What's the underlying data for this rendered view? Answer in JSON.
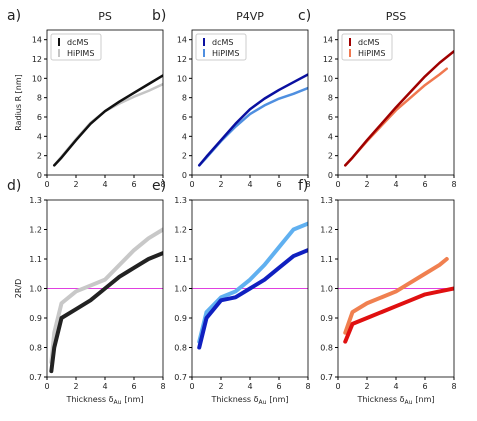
{
  "chart_data": [
    {
      "type": "line",
      "panel_label": "a)",
      "title": "PS",
      "ylabel": "Radius R [nm]",
      "xlim": [
        0,
        8
      ],
      "ylim": [
        0,
        15
      ],
      "xticks": [
        0,
        2,
        4,
        6,
        8
      ],
      "yticks": [
        0,
        2,
        4,
        6,
        8,
        10,
        12,
        14
      ],
      "legend": "upper left",
      "series": [
        {
          "name": "dcMS",
          "color": "#111111",
          "x": [
            0.5,
            1,
            2,
            3,
            4,
            5,
            6,
            7,
            8
          ],
          "values": [
            1.0,
            1.8,
            3.6,
            5.3,
            6.6,
            7.6,
            8.5,
            9.4,
            10.3
          ]
        },
        {
          "name": "HiPIMS",
          "color": "#c4c4c4",
          "x": [
            0.5,
            1,
            2,
            3,
            4,
            5,
            6,
            7,
            8
          ],
          "values": [
            1.0,
            1.9,
            3.7,
            5.4,
            6.6,
            7.4,
            8.1,
            8.7,
            9.4
          ]
        }
      ]
    },
    {
      "type": "line",
      "panel_label": "b)",
      "title": "P4VP",
      "xlim": [
        0,
        8
      ],
      "ylim": [
        0,
        15
      ],
      "xticks": [
        0,
        2,
        4,
        6,
        8
      ],
      "yticks": [
        0,
        2,
        4,
        6,
        8,
        10,
        12,
        14
      ],
      "legend": "upper left",
      "series": [
        {
          "name": "dcMS",
          "color": "#0a10a0",
          "x": [
            0.5,
            1,
            2,
            3,
            4,
            5,
            6,
            7,
            8
          ],
          "values": [
            1.0,
            1.9,
            3.6,
            5.3,
            6.8,
            7.9,
            8.8,
            9.6,
            10.4
          ]
        },
        {
          "name": "HiPIMS",
          "color": "#4f8fe0",
          "x": [
            0.5,
            1,
            2,
            3,
            4,
            5,
            6,
            7,
            8
          ],
          "values": [
            1.0,
            1.8,
            3.5,
            5.0,
            6.3,
            7.2,
            7.9,
            8.4,
            9.0
          ]
        }
      ]
    },
    {
      "type": "line",
      "panel_label": "c)",
      "title": "PSS",
      "xlim": [
        0,
        8
      ],
      "ylim": [
        0,
        15
      ],
      "xticks": [
        0,
        2,
        4,
        6,
        8
      ],
      "yticks": [
        0,
        2,
        4,
        6,
        8,
        10,
        12,
        14
      ],
      "legend": "upper left",
      "series": [
        {
          "name": "dcMS",
          "color": "#a00000",
          "x": [
            0.5,
            1,
            2,
            3,
            4,
            5,
            6,
            7,
            8
          ],
          "values": [
            1.0,
            1.8,
            3.6,
            5.3,
            7.0,
            8.6,
            10.2,
            11.6,
            12.8
          ]
        },
        {
          "name": "HiPIMS",
          "color": "#f07850",
          "x": [
            0.5,
            1,
            2,
            3,
            4,
            5,
            6,
            7,
            7.5
          ],
          "values": [
            1.0,
            1.8,
            3.5,
            5.1,
            6.7,
            8.0,
            9.3,
            10.4,
            11.0
          ]
        }
      ]
    },
    {
      "type": "line",
      "panel_label": "d)",
      "ylabel": "2R/D",
      "xlabel": [
        "Thickness δ",
        "Au",
        "[nm]"
      ],
      "xlim": [
        0,
        8
      ],
      "ylim": [
        0.7,
        1.3
      ],
      "xticks": [
        0,
        2,
        4,
        6,
        8
      ],
      "yticks": [
        0.7,
        0.8,
        0.9,
        {
          "value": 1,
          "label": "1.0"
        },
        1.1,
        1.2,
        1.3
      ],
      "hline": 1,
      "hline_color": "#e040e0",
      "series": [
        {
          "name": "dcMS",
          "color": "#222222",
          "x": [
            0.3,
            0.5,
            1,
            2,
            3,
            4,
            5,
            6,
            7,
            8
          ],
          "values": [
            0.72,
            0.8,
            0.9,
            0.93,
            0.96,
            1.0,
            1.04,
            1.07,
            1.1,
            1.12
          ]
        },
        {
          "name": "HiPIMS",
          "color": "#c8c8c8",
          "x": [
            0.3,
            0.5,
            1,
            2,
            3,
            4,
            5,
            6,
            7,
            8
          ],
          "values": [
            0.75,
            0.85,
            0.95,
            0.99,
            1.01,
            1.03,
            1.08,
            1.13,
            1.17,
            1.2
          ]
        }
      ]
    },
    {
      "type": "line",
      "panel_label": "e)",
      "xlabel": [
        "Thickness δ",
        "Au",
        "[nm]"
      ],
      "xlim": [
        0,
        8
      ],
      "ylim": [
        0.7,
        1.3
      ],
      "xticks": [
        0,
        2,
        4,
        6,
        8
      ],
      "yticks": [
        0.7,
        0.8,
        0.9,
        {
          "value": 1,
          "label": "1.0"
        },
        1.1,
        1.2,
        1.3
      ],
      "hline": 1,
      "hline_color": "#e040e0",
      "series": [
        {
          "name": "dcMS",
          "color": "#1020c0",
          "x": [
            0.5,
            1,
            2,
            3,
            4,
            5,
            6,
            7,
            8
          ],
          "values": [
            0.8,
            0.9,
            0.96,
            0.97,
            1.0,
            1.03,
            1.07,
            1.11,
            1.13
          ]
        },
        {
          "name": "HiPIMS",
          "color": "#60b0f0",
          "x": [
            0.5,
            1,
            2,
            3,
            4,
            5,
            6,
            7,
            8
          ],
          "values": [
            0.82,
            0.92,
            0.97,
            0.99,
            1.03,
            1.08,
            1.14,
            1.2,
            1.22
          ]
        }
      ]
    },
    {
      "type": "line",
      "panel_label": "f)",
      "xlabel": [
        "Thickness δ",
        "Au",
        "[nm]"
      ],
      "xlim": [
        0,
        8
      ],
      "ylim": [
        0.7,
        1.3
      ],
      "xticks": [
        0,
        2,
        4,
        6,
        8
      ],
      "yticks": [
        0.7,
        0.8,
        0.9,
        {
          "value": 1,
          "label": "1.0"
        },
        1.1,
        1.2,
        1.3
      ],
      "hline": 1,
      "hline_color": "#e040e0",
      "series": [
        {
          "name": "dcMS",
          "color": "#e01010",
          "x": [
            0.5,
            1,
            2,
            3,
            4,
            5,
            6,
            7,
            8
          ],
          "values": [
            0.82,
            0.88,
            0.9,
            0.92,
            0.94,
            0.96,
            0.98,
            0.99,
            1.0
          ]
        },
        {
          "name": "HiPIMS",
          "color": "#f08050",
          "x": [
            0.5,
            1,
            2,
            3,
            4,
            5,
            6,
            7,
            7.5
          ],
          "values": [
            0.85,
            0.92,
            0.95,
            0.97,
            0.99,
            1.02,
            1.05,
            1.08,
            1.1
          ]
        }
      ]
    }
  ]
}
